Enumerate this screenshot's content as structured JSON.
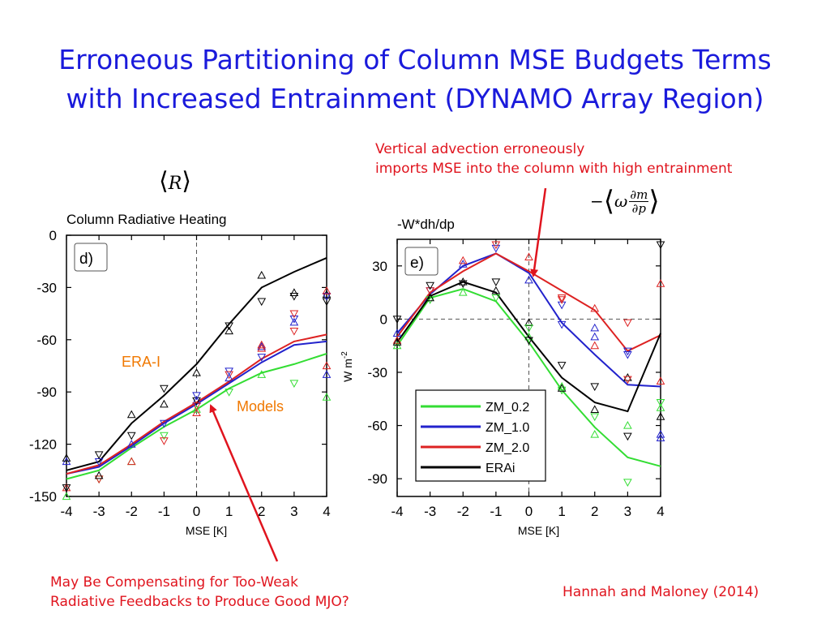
{
  "slide": {
    "title_line1": "Erroneous Partitioning of Column MSE Budgets Terms",
    "title_line2": "with Increased Entrainment (DYNAMO Array Region)",
    "annotation_top_line1": "Vertical advection erroneously",
    "annotation_top_line2": "imports MSE into the column with high entrainment",
    "annotation_bottom_line1": "May Be Compensating for Too-Weak",
    "annotation_bottom_line2": "Radiative Feedbacks to Produce Good MJO?",
    "citation": "Hannah and Maloney (2014)",
    "math_left": "R",
    "math_right_prefix": "−",
    "math_right_omega": "ω",
    "math_right_num": "∂m",
    "math_right_den": "∂p",
    "colors": {
      "title": "#1a1adb",
      "annotation": "#e0141e",
      "label_orange": "#f07800",
      "zm02": "#33dd33",
      "zm10": "#2222cc",
      "zm20": "#dd2222",
      "erai": "#000000"
    }
  },
  "chart_data": [
    {
      "type": "line",
      "title": "Column Radiative Heating",
      "panel_label": "d)",
      "xlabel": "MSE [K]",
      "ylabel": "",
      "xlim": [
        -4,
        4
      ],
      "ylim": [
        -150,
        0
      ],
      "xticks": [
        -4,
        -3,
        -2,
        -1,
        0,
        1,
        2,
        3,
        4
      ],
      "yticks": [
        0,
        -30,
        -60,
        -90,
        -120,
        -150
      ],
      "x": [
        -4,
        -3,
        -2,
        -1,
        0,
        1,
        2,
        3,
        4
      ],
      "annotations": [
        {
          "text": "ERA-I",
          "color": "#f07800"
        },
        {
          "text": "Models",
          "color": "#f07800"
        }
      ],
      "series": [
        {
          "key": "zm02",
          "values": [
            -140,
            -135,
            -122,
            -110,
            -100,
            -88,
            -79,
            -74,
            -68
          ],
          "markers": [
            -150,
            -140,
            -130,
            -115,
            -100,
            -90,
            -80,
            -85,
            -93
          ]
        },
        {
          "key": "zm10",
          "values": [
            -137,
            -133,
            -121,
            -108,
            -97,
            -85,
            -73,
            -63,
            -61
          ],
          "markers": [
            -130,
            -130,
            -120,
            -108,
            -95,
            -78,
            -64,
            -48,
            -80
          ]
        },
        {
          "key": "zm20",
          "values": [
            -137,
            -132,
            -120,
            -107,
            -96,
            -84,
            -71,
            -61,
            -57
          ],
          "markers": [
            -145,
            -140,
            -130,
            -118,
            -102,
            -80,
            -63,
            -45,
            -75
          ]
        },
        {
          "key": "erai",
          "values": [
            -135,
            -130,
            -108,
            -92,
            -74,
            -51,
            -30,
            -21,
            -13
          ],
          "markers": [
            -128,
            -126,
            -103,
            -88,
            -79,
            -52,
            -23,
            -35,
            -34
          ]
        }
      ],
      "extra_markers": [
        {
          "key": "erai",
          "x": [
            -4,
            -3,
            -2,
            -1,
            0,
            1,
            2,
            3,
            4
          ],
          "values": [
            -145,
            -138,
            -115,
            -97,
            -95,
            -55,
            -38,
            -33,
            -38
          ]
        },
        {
          "key": "zm10",
          "x": [
            0,
            1,
            2,
            3,
            4
          ],
          "values": [
            -92,
            -82,
            -70,
            -50,
            -35
          ]
        },
        {
          "key": "zm20",
          "x": [
            0,
            2,
            3,
            4
          ],
          "values": [
            -98,
            -65,
            -55,
            -32
          ]
        }
      ]
    },
    {
      "type": "line",
      "title": "-W*dh/dp",
      "panel_label": "e)",
      "xlabel": "MSE [K]",
      "ylabel": "W m",
      "ylabel_sup": "-2",
      "xlim": [
        -4,
        4
      ],
      "ylim": [
        -100,
        45
      ],
      "xticks": [
        -4,
        -3,
        -2,
        -1,
        0,
        1,
        2,
        3,
        4
      ],
      "yticks": [
        30,
        0,
        -30,
        -60,
        -90
      ],
      "x": [
        -4,
        -3,
        -2,
        -1,
        0,
        1,
        2,
        3,
        4
      ],
      "legend_position": "bottom-center",
      "series": [
        {
          "key": "zm02",
          "name": "ZM_0.2",
          "values": [
            -15,
            12,
            17,
            10,
            -13,
            -40,
            -61,
            -78,
            -83
          ],
          "markers": [
            -15,
            11,
            15,
            12,
            -10,
            -40,
            -65,
            -92,
            -50
          ]
        },
        {
          "key": "zm10",
          "name": "ZM_1.0",
          "values": [
            -8,
            14,
            30,
            37,
            26,
            -2,
            -20,
            -37,
            -38
          ],
          "markers": [
            -8,
            16,
            31,
            40,
            22,
            8,
            -5,
            -18,
            -65
          ]
        },
        {
          "key": "zm20",
          "name": "ZM_2.0",
          "values": [
            -10,
            15,
            27,
            37,
            27,
            16,
            5,
            -18,
            -9
          ],
          "markers": [
            -12,
            16,
            33,
            42,
            35,
            11,
            6,
            -2,
            20
          ]
        },
        {
          "key": "erai",
          "name": "ERAi",
          "values": [
            -13,
            13,
            21,
            15,
            -10,
            -33,
            -47,
            -52,
            -8
          ],
          "markers": [
            -13,
            19,
            21,
            21,
            -2,
            -26,
            -51,
            -66,
            -55
          ]
        }
      ],
      "extra_markers": [
        {
          "key": "erai",
          "x": [
            -4,
            -3,
            -2,
            -1,
            0,
            1,
            2,
            3,
            4
          ],
          "values": [
            0,
            12,
            20,
            16,
            -12,
            -39,
            -38,
            -33,
            42
          ]
        },
        {
          "key": "zm02",
          "x": [
            0,
            1,
            2,
            3,
            4
          ],
          "values": [
            -5,
            -38,
            -55,
            -60,
            -47
          ]
        },
        {
          "key": "zm10",
          "x": [
            1,
            2,
            3,
            4
          ],
          "values": [
            -3,
            -10,
            -20,
            -67
          ]
        },
        {
          "key": "zm20",
          "x": [
            1,
            2,
            3,
            4
          ],
          "values": [
            12,
            -15,
            -34,
            -35
          ]
        }
      ]
    }
  ]
}
